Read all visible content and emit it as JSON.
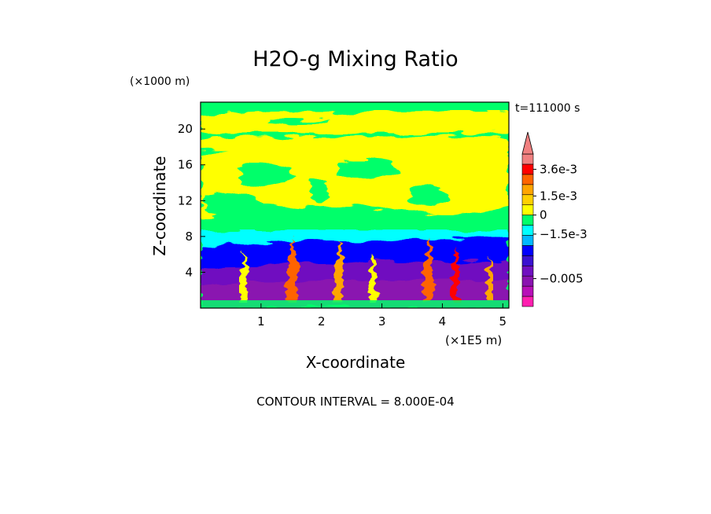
{
  "chart_data": {
    "type": "heatmap",
    "title": "H2O-g Mixing Ratio",
    "xlabel": "X-coordinate",
    "ylabel": "Z-coordinate",
    "x_unit": "(×1E5 m)",
    "y_unit": "(×1000 m)",
    "time_label": "t=111000 s",
    "footer": "CONTOUR INTERVAL = 8.000E-04",
    "xlim": [
      0,
      5.1
    ],
    "ylim": [
      0,
      23
    ],
    "x_ticks": [
      1,
      2,
      3,
      4,
      5
    ],
    "x_tick_labels": [
      "1",
      "2",
      "3",
      "4",
      "5"
    ],
    "y_ticks": [
      4,
      8,
      12,
      16,
      20
    ],
    "y_tick_labels": [
      "4",
      "8",
      "12",
      "16",
      "20"
    ],
    "contour_interval": 0.0008,
    "colorbar": {
      "levels": [
        -0.0072,
        -0.0064,
        -0.0056,
        -0.0048,
        -0.004,
        -0.0032,
        -0.0024,
        -0.0016,
        -0.0008,
        0,
        0.0008,
        0.0016,
        0.0024,
        0.0032,
        0.004
      ],
      "colors": [
        "#ff1fb0",
        "#b80fb8",
        "#8a13b0",
        "#7010c0",
        "#3a12d0",
        "#0000ff",
        "#00b8ff",
        "#00ffff",
        "#00ff6a",
        "#ffff00",
        "#ffd000",
        "#ffa500",
        "#ff6400",
        "#ff0000",
        "#f08080"
      ],
      "tick_values": [
        0.0036,
        0.0015,
        0,
        -0.0015,
        -0.005
      ],
      "tick_labels": [
        "3.6e-3",
        "1.5e-3",
        "0",
        "−1.5e-3",
        "−0.005"
      ],
      "extend": "max"
    },
    "regions": [
      {
        "z_range": [
          0,
          1.5
        ],
        "value": -0.0064,
        "color": "#8a13b0"
      },
      {
        "z_range": [
          1.5,
          3.5
        ],
        "value": -0.0048,
        "color": "#7010c0"
      },
      {
        "z_range": [
          3.5,
          6
        ],
        "value": -0.0016,
        "color": "#0000ff"
      },
      {
        "z_range": [
          6,
          8.5
        ],
        "value": -0.0008,
        "color": "#00ffff"
      },
      {
        "z_range": [
          8.5,
          23
        ],
        "value": 0,
        "color": "#00ff6a"
      }
    ]
  }
}
